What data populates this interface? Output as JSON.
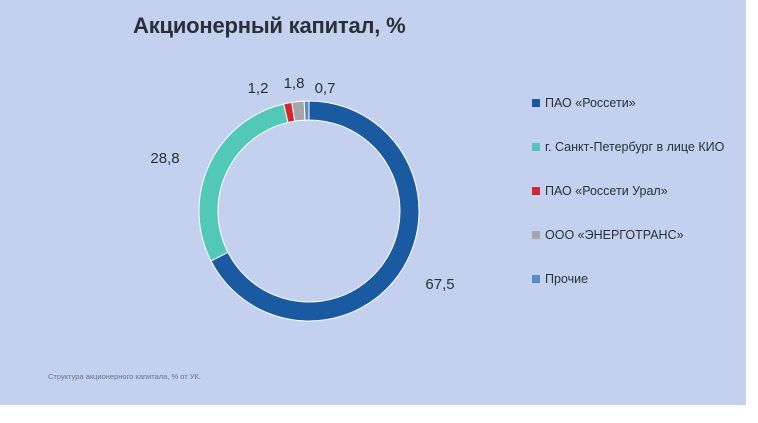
{
  "title": "Акционерный капитал, %",
  "footnote": "Структура акционерного капитала, % от УК.",
  "chart_data": {
    "type": "pie",
    "title": "Акционерный капитал, %",
    "donut": true,
    "legend_position": "right",
    "slices": [
      {
        "label": "ПАО «Россети»",
        "value": 67.5,
        "value_label": "67,5",
        "color": "#1a5aa0"
      },
      {
        "label": "г. Санкт-Петербург в лице КИО",
        "value": 28.8,
        "value_label": "28,8",
        "color": "#52c8b8"
      },
      {
        "label": "ПАО «Россети Урал»",
        "value": 1.2,
        "value_label": "1,2",
        "color": "#d4272c"
      },
      {
        "label": "ООО «ЭНЕРГОТРАНС»",
        "value": 1.8,
        "value_label": "1,8",
        "color": "#a4a6ab"
      },
      {
        "label": "Прочие",
        "value": 0.7,
        "value_label": "0,7",
        "color": "#5b8bc9"
      }
    ]
  }
}
